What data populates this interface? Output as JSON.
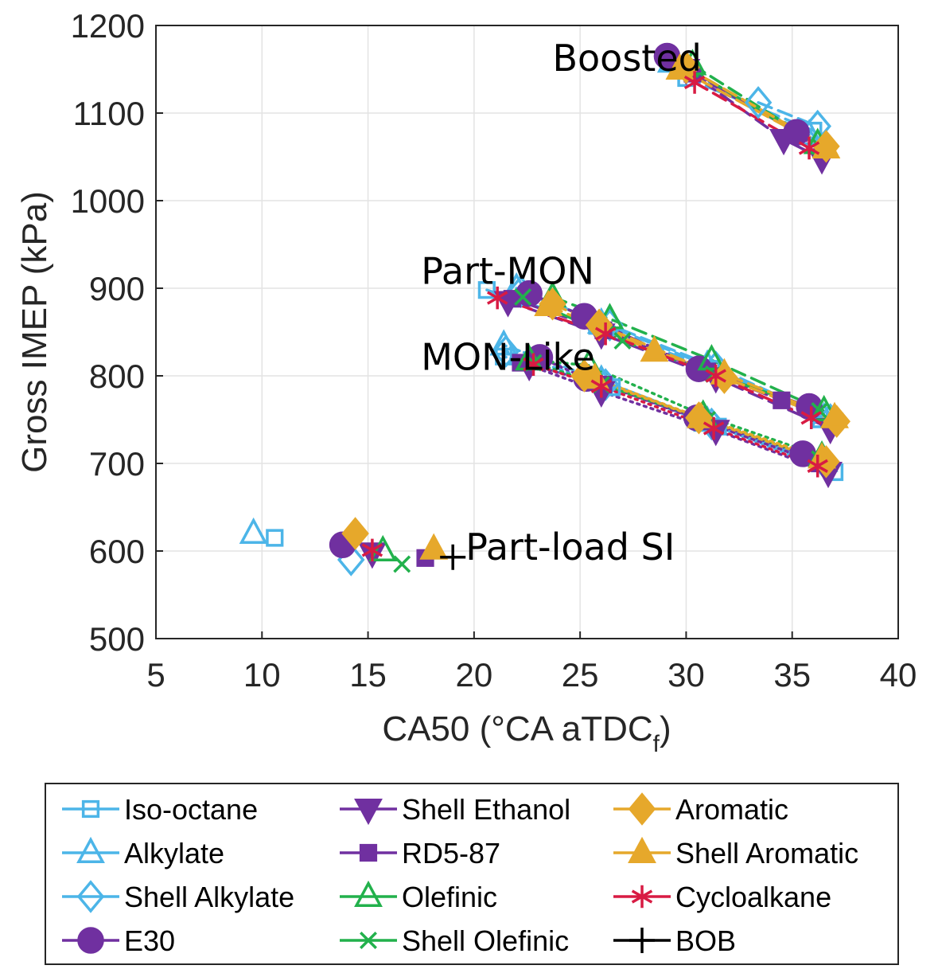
{
  "chart_data": {
    "type": "scatter",
    "title": "",
    "xlabel": "CA50 (°CA aTDC",
    "xlabel_subscript": "f",
    "xlabel_close": ")",
    "ylabel": "Gross IMEP (kPa)",
    "xlim": [
      5,
      40
    ],
    "ylim": [
      500,
      1200
    ],
    "xticks": [
      5,
      10,
      15,
      20,
      25,
      30,
      35,
      40
    ],
    "yticks": [
      500,
      600,
      700,
      800,
      900,
      1000,
      1100,
      1200
    ],
    "grid": true,
    "legend_position": "below",
    "annotations": [
      {
        "text": "Boosted",
        "x": 23.7,
        "y": 1148
      },
      {
        "text": "Part-MON",
        "x": 17.5,
        "y": 905
      },
      {
        "text": "MON-Like",
        "x": 17.5,
        "y": 807
      },
      {
        "text": "Part-load SI",
        "x": 19.6,
        "y": 590
      }
    ],
    "series": [
      {
        "name": "Iso-octane",
        "color": "#4CB5E8",
        "marker": "square",
        "filled": false,
        "groups": {
          "part_load": [
            [
              10.6,
              615
            ]
          ],
          "mon_like": [
            [
              21.4,
              822
            ],
            [
              26.5,
              787
            ],
            [
              31.5,
              742
            ],
            [
              37.0,
              690
            ]
          ],
          "part_mon": [
            [
              20.6,
              898
            ],
            [
              25.8,
              857
            ],
            [
              31.2,
              808
            ],
            [
              37.0,
              748
            ]
          ],
          "boosted": [
            [
              30.0,
              1140
            ],
            [
              36.0,
              1080
            ]
          ]
        }
      },
      {
        "name": "Alkylate",
        "color": "#4CB5E8",
        "marker": "triangle-up",
        "filled": false,
        "groups": {
          "part_load": [
            [
              9.6,
              620
            ]
          ],
          "mon_like": [
            [
              21.4,
              835
            ],
            [
              26.0,
              795
            ],
            [
              31.0,
              748
            ],
            [
              36.5,
              702
            ]
          ],
          "part_mon": [
            [
              22.0,
              900
            ],
            [
              26.0,
              860
            ],
            [
              31.0,
              812
            ],
            [
              36.5,
              752
            ]
          ],
          "boosted": [
            [
              29.3,
              1158
            ],
            [
              35.8,
              1075
            ]
          ]
        }
      },
      {
        "name": "Shell Alkylate",
        "color": "#4CB5E8",
        "marker": "diamond",
        "filled": false,
        "groups": {
          "part_load": [
            [
              14.2,
              590
            ]
          ],
          "mon_like": [
            [
              21.5,
              828
            ],
            [
              26.2,
              790
            ],
            [
              31.2,
              745
            ],
            [
              36.6,
              698
            ]
          ],
          "part_mon": [
            [
              22.2,
              896
            ],
            [
              26.4,
              858
            ],
            [
              31.4,
              810
            ],
            [
              36.8,
              750
            ]
          ],
          "boosted": [
            [
              33.4,
              1112
            ],
            [
              36.2,
              1085
            ]
          ]
        }
      },
      {
        "name": "E30",
        "color": "#7030A0",
        "marker": "circle",
        "filled": true,
        "groups": {
          "part_load": [
            [
              13.8,
              607
            ]
          ],
          "mon_like": [
            [
              23.1,
              821
            ],
            [
              25.3,
              797
            ],
            [
              30.5,
              752
            ],
            [
              35.5,
              711
            ]
          ],
          "part_mon": [
            [
              22.6,
              894
            ],
            [
              25.2,
              868
            ],
            [
              30.6,
              808
            ],
            [
              35.8,
              765
            ]
          ],
          "boosted": [
            [
              29.1,
              1165
            ],
            [
              35.2,
              1078
            ]
          ]
        }
      },
      {
        "name": "Shell Ethanol",
        "color": "#7030A0",
        "marker": "triangle-down",
        "filled": true,
        "groups": {
          "part_load": [
            [
              15.2,
              598
            ]
          ],
          "mon_like": [
            [
              22.6,
              812
            ],
            [
              26.0,
              782
            ],
            [
              31.4,
              738
            ],
            [
              36.7,
              690
            ]
          ],
          "part_mon": [
            [
              21.6,
              885
            ],
            [
              26.0,
              848
            ],
            [
              31.4,
              798
            ],
            [
              36.8,
              740
            ]
          ],
          "boosted": [
            [
              30.0,
              1150
            ],
            [
              34.6,
              1070
            ],
            [
              36.4,
              1048
            ]
          ]
        }
      },
      {
        "name": "RD5-87",
        "color": "#7030A0",
        "marker": "square",
        "filled": true,
        "groups": {
          "part_load": [
            [
              17.7,
              592
            ]
          ],
          "mon_like": [
            [
              22.2,
              815
            ],
            [
              26.1,
              790
            ],
            [
              30.8,
              748
            ],
            [
              36.3,
              700
            ]
          ],
          "part_mon": [
            [
              21.8,
              888
            ],
            [
              26.1,
              852
            ],
            [
              31.0,
              805
            ],
            [
              34.5,
              772
            ]
          ],
          "boosted": [
            [
              30.3,
              1145
            ],
            [
              35.3,
              1077
            ]
          ]
        }
      },
      {
        "name": "Olefinic",
        "color": "#22B14C",
        "marker": "triangle-up",
        "filled": false,
        "groups": {
          "part_load": [
            [
              15.7,
              600
            ]
          ],
          "mon_like": [
            [
              22.6,
              818
            ],
            [
              25.4,
              812
            ],
            [
              30.8,
              755
            ],
            [
              36.4,
              708
            ]
          ],
          "part_mon": [
            [
              23.7,
              890
            ],
            [
              26.4,
              865
            ],
            [
              31.2,
              818
            ],
            [
              36.5,
              760
            ]
          ],
          "boosted": [
            [
              30.3,
              1155
            ],
            [
              36.2,
              1065
            ]
          ]
        }
      },
      {
        "name": "Shell Olefinic",
        "color": "#22B14C",
        "marker": "x",
        "filled": false,
        "groups": {
          "part_load": [
            [
              16.6,
              585
            ]
          ],
          "mon_like": [
            [
              22.8,
              815
            ],
            [
              26.0,
              790
            ],
            [
              31.0,
              750
            ],
            [
              36.3,
              705
            ]
          ],
          "part_mon": [
            [
              22.3,
              890
            ],
            [
              27.0,
              840
            ],
            [
              31.3,
              802
            ],
            [
              36.3,
              760
            ]
          ],
          "boosted": [
            [
              30.2,
              1150
            ],
            [
              36.3,
              1062
            ]
          ]
        }
      },
      {
        "name": "Aromatic",
        "color": "#E6A82B",
        "marker": "diamond",
        "filled": true,
        "groups": {
          "part_load": [
            [
              14.4,
              620
            ]
          ],
          "mon_like": [
            [
              25.2,
              800
            ],
            [
              30.6,
              752
            ],
            [
              36.6,
              702
            ]
          ],
          "part_mon": [
            [
              23.7,
              882
            ],
            [
              25.9,
              858
            ],
            [
              31.8,
              798
            ],
            [
              37.1,
              748
            ]
          ],
          "boosted": [
            [
              30.0,
              1152
            ],
            [
              36.6,
              1062
            ]
          ]
        }
      },
      {
        "name": "Shell Aromatic",
        "color": "#E6A82B",
        "marker": "triangle-up",
        "filled": true,
        "groups": {
          "part_load": [
            [
              18.1,
              602
            ]
          ],
          "mon_like": [
            [
              25.7,
              797
            ],
            [
              30.7,
              752
            ],
            [
              36.4,
              706
            ]
          ],
          "part_mon": [
            [
              23.5,
              880
            ],
            [
              28.5,
              828
            ],
            [
              31.8,
              802
            ],
            [
              37.0,
              752
            ]
          ],
          "boosted": [
            [
              29.7,
              1150
            ],
            [
              36.6,
              1060
            ]
          ]
        }
      },
      {
        "name": "Cycloalkane",
        "color": "#D81B43",
        "marker": "asterisk",
        "filled": false,
        "groups": {
          "part_load": [
            [
              15.2,
              601
            ]
          ],
          "mon_like": [
            [
              22.8,
              813
            ],
            [
              26.0,
              788
            ],
            [
              31.3,
              740
            ],
            [
              36.2,
              697
            ]
          ],
          "part_mon": [
            [
              21.1,
              889
            ],
            [
              26.2,
              848
            ],
            [
              31.4,
              800
            ],
            [
              35.9,
              752
            ]
          ],
          "boosted": [
            [
              30.4,
              1135
            ],
            [
              35.8,
              1060
            ]
          ]
        }
      },
      {
        "name": "BOB",
        "color": "#000000",
        "marker": "plus",
        "filled": false,
        "groups": {
          "part_load": [
            [
              19.0,
              593
            ]
          ]
        }
      }
    ]
  },
  "legend": {
    "columns": [
      [
        "Iso-octane",
        "Alkylate",
        "Shell Alkylate",
        "E30"
      ],
      [
        "Shell Ethanol",
        "RD5-87",
        "Olefinic",
        "Shell Olefinic"
      ],
      [
        "Aromatic",
        "Shell Aromatic",
        "Cycloalkane",
        "BOB"
      ]
    ]
  }
}
